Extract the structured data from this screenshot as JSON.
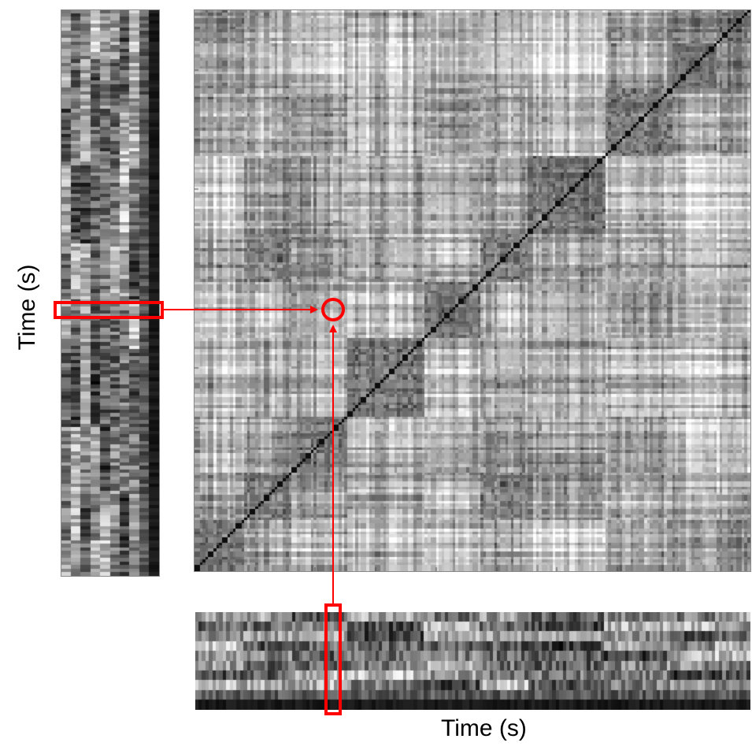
{
  "figure": {
    "ylabel": "Time (s)",
    "xlabel": "Time (s)"
  },
  "panels": {
    "left": "feature-matrix-vertical",
    "center": "self-similarity-matrix",
    "bottom": "feature-matrix-horizontal"
  },
  "colors": {
    "highlight": "#ff0000",
    "ink": "#000000",
    "background": "#ffffff"
  }
}
